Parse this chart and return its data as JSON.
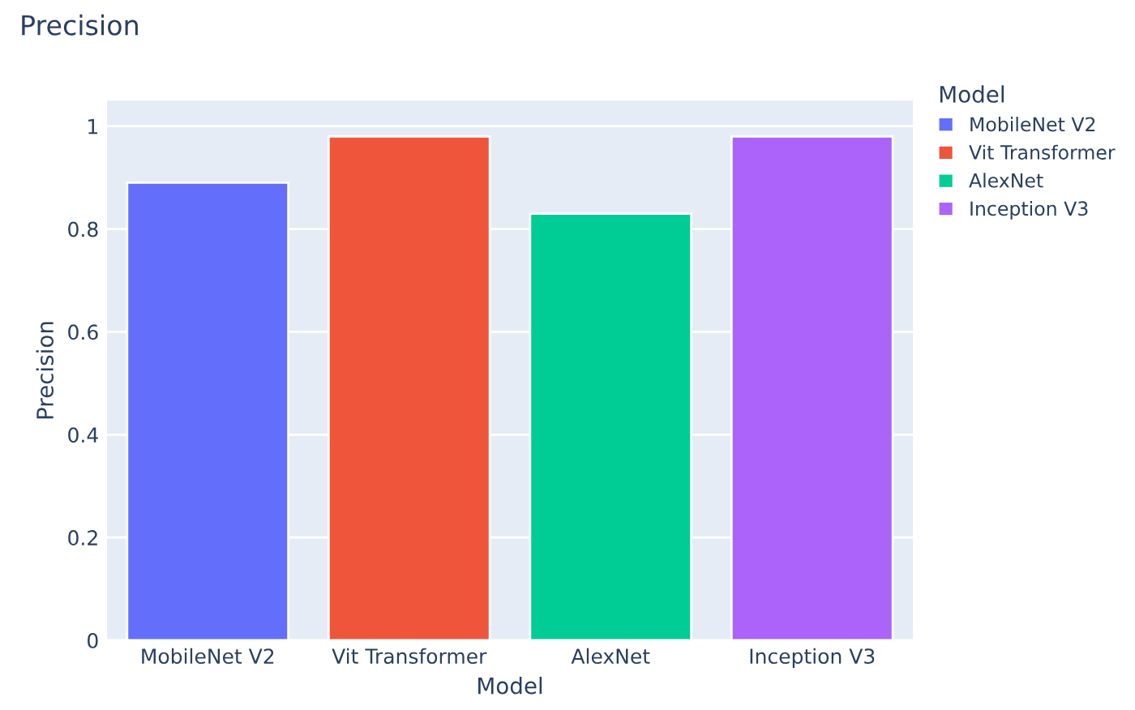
{
  "chart_data": {
    "type": "bar",
    "title": "Precision",
    "xlabel": "Model",
    "ylabel": "Precision",
    "legend_title": "Model",
    "categories": [
      "MobileNet V2",
      "Vit Transformer",
      "AlexNet",
      "Inception V3"
    ],
    "series": [
      {
        "name": "MobileNet V2",
        "color": "#636efa",
        "values": [
          0.89,
          null,
          null,
          null
        ]
      },
      {
        "name": "Vit Transformer",
        "color": "#ef553b",
        "values": [
          null,
          0.98,
          null,
          null
        ]
      },
      {
        "name": "AlexNet",
        "color": "#00cc96",
        "values": [
          null,
          null,
          0.83,
          null
        ]
      },
      {
        "name": "Inception V3",
        "color": "#ab63fa",
        "values": [
          null,
          null,
          null,
          0.98
        ]
      }
    ],
    "ylim": [
      0,
      1.05
    ],
    "yticks": [
      0,
      0.2,
      0.4,
      0.6,
      0.8,
      1
    ],
    "grid": "y",
    "legend": "top right"
  }
}
